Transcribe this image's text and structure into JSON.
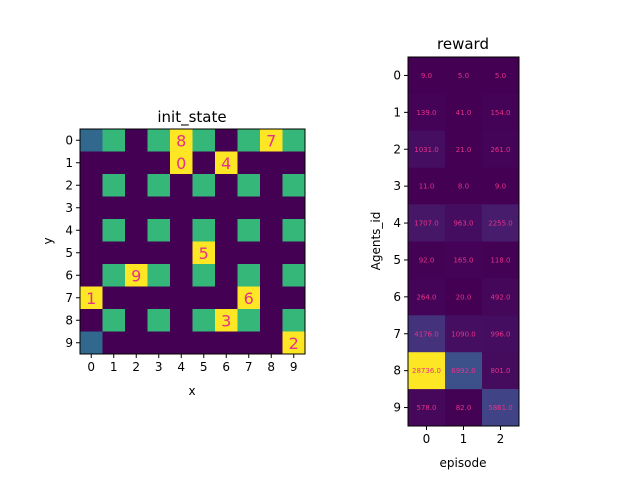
{
  "chart_data": [
    {
      "type": "heatmap",
      "title": "init_state",
      "xlabel": "x",
      "ylabel": "y",
      "x_ticks": [
        "0",
        "1",
        "2",
        "3",
        "4",
        "5",
        "6",
        "7",
        "8",
        "9"
      ],
      "y_ticks": [
        "0",
        "1",
        "2",
        "3",
        "4",
        "5",
        "6",
        "7",
        "8",
        "9"
      ],
      "colormap": "viridis",
      "legend": "none",
      "grid": false,
      "palette": {
        "0": "#440154",
        "1": "#35b779",
        "2": "#31688e",
        "3": "#fde725"
      },
      "cells": [
        [
          2,
          1,
          0,
          1,
          3,
          1,
          0,
          1,
          3,
          1
        ],
        [
          0,
          0,
          0,
          0,
          3,
          0,
          3,
          0,
          0,
          0
        ],
        [
          0,
          1,
          0,
          1,
          0,
          1,
          0,
          1,
          0,
          1
        ],
        [
          0,
          0,
          0,
          0,
          0,
          0,
          0,
          0,
          0,
          0
        ],
        [
          0,
          1,
          0,
          1,
          0,
          1,
          0,
          1,
          0,
          1
        ],
        [
          0,
          0,
          0,
          0,
          0,
          3,
          0,
          0,
          0,
          0
        ],
        [
          0,
          1,
          3,
          1,
          0,
          1,
          0,
          1,
          0,
          1
        ],
        [
          3,
          0,
          0,
          0,
          0,
          0,
          0,
          3,
          0,
          0
        ],
        [
          0,
          1,
          0,
          1,
          0,
          1,
          3,
          1,
          0,
          1
        ],
        [
          2,
          0,
          0,
          0,
          0,
          0,
          0,
          0,
          0,
          3
        ]
      ],
      "agents": [
        {
          "label": "8",
          "x": 4,
          "y": 0
        },
        {
          "label": "7",
          "x": 8,
          "y": 0
        },
        {
          "label": "0",
          "x": 4,
          "y": 1
        },
        {
          "label": "4",
          "x": 6,
          "y": 1
        },
        {
          "label": "5",
          "x": 5,
          "y": 5
        },
        {
          "label": "9",
          "x": 2,
          "y": 6
        },
        {
          "label": "1",
          "x": 0,
          "y": 7
        },
        {
          "label": "6",
          "x": 7,
          "y": 7
        },
        {
          "label": "3",
          "x": 6,
          "y": 8
        },
        {
          "label": "2",
          "x": 9,
          "y": 9
        }
      ]
    },
    {
      "type": "heatmap",
      "title": "reward",
      "xlabel": "episode",
      "ylabel": "Agents_id",
      "x_ticks": [
        "0",
        "1",
        "2"
      ],
      "y_ticks": [
        "0",
        "1",
        "2",
        "3",
        "4",
        "5",
        "6",
        "7",
        "8",
        "9"
      ],
      "colormap": "viridis",
      "legend": "none",
      "grid": false,
      "values": [
        [
          9.0,
          5.0,
          5.0
        ],
        [
          139.0,
          41.0,
          154.0
        ],
        [
          1031.0,
          21.0,
          261.0
        ],
        [
          11.0,
          8.0,
          9.0
        ],
        [
          1707.0,
          963.0,
          2255.0
        ],
        [
          92.0,
          165.0,
          118.0
        ],
        [
          264.0,
          20.0,
          492.0
        ],
        [
          4176.0,
          1090.0,
          996.0
        ],
        [
          28736.0,
          6992.0,
          801.0
        ],
        [
          578.0,
          82.0,
          5861.0
        ]
      ],
      "labels": [
        [
          "9.0",
          "5.0",
          "5.0"
        ],
        [
          "139.0",
          "41.0",
          "154.0"
        ],
        [
          "1031.0",
          "21.0",
          "261.0"
        ],
        [
          "11.0",
          "8.0",
          "9.0"
        ],
        [
          "1707.0",
          "963.0",
          "2255.0"
        ],
        [
          "92.0",
          "165.0",
          "118.0"
        ],
        [
          "264.0",
          "20.0",
          "492.0"
        ],
        [
          "4176.0",
          "1090.0",
          "996.0"
        ],
        [
          "28736.0",
          "6992.0",
          "801.0"
        ],
        [
          "578.0",
          "82.0",
          "5861.0"
        ]
      ],
      "vmin": 5.0,
      "vmax": 28736.0
    }
  ]
}
